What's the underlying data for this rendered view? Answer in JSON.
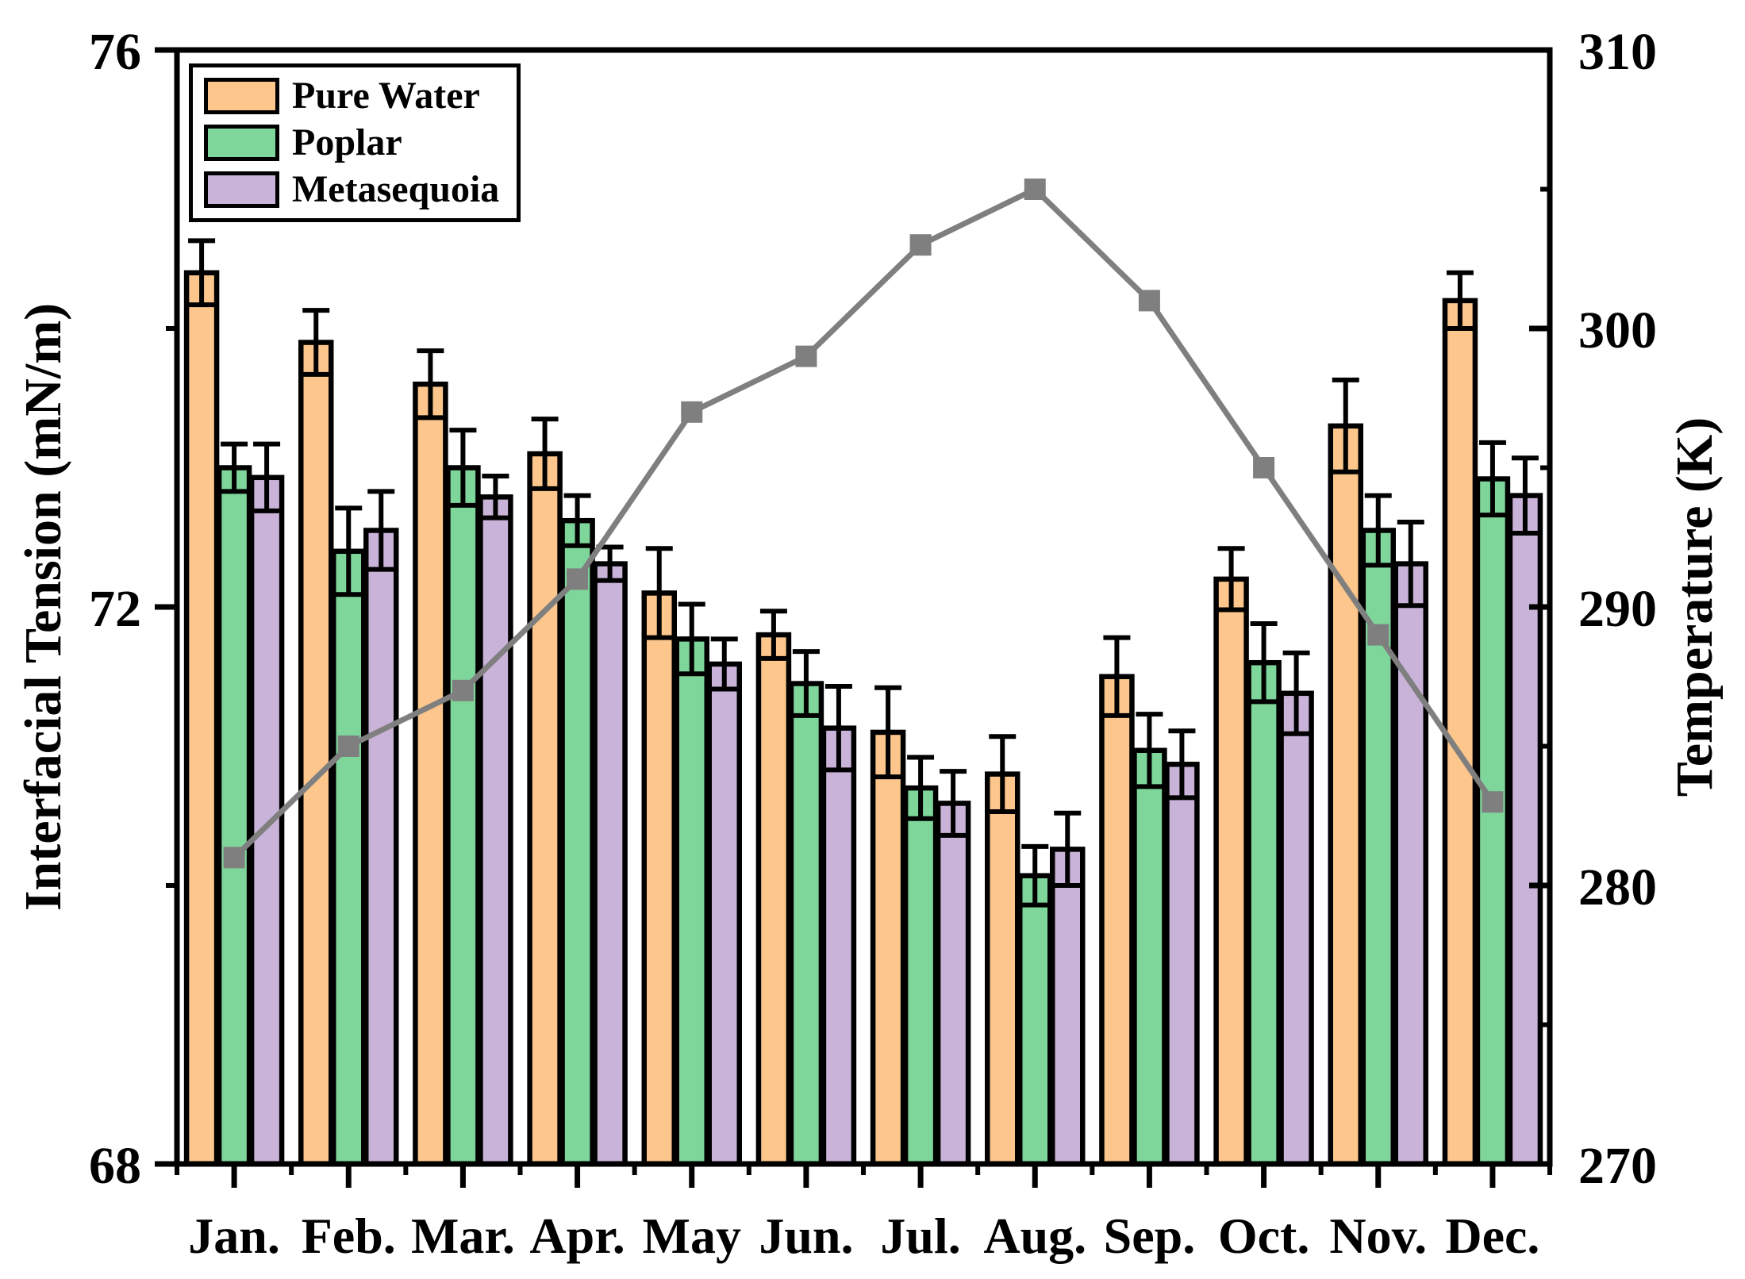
{
  "chart_data": {
    "type": "bar",
    "title": "",
    "categories": [
      "Jan.",
      "Feb.",
      "Mar.",
      "Apr.",
      "May",
      "Jun.",
      "Jul.",
      "Aug.",
      "Sep.",
      "Oct.",
      "Nov.",
      "Dec."
    ],
    "ylabel_left": "Interfacial Tension (mN/m)",
    "ylabel_right": "Temperature (K)",
    "left_axis": {
      "min": 68,
      "max": 76,
      "major_ticks": [
        68,
        72,
        76
      ],
      "minor_ticks": [
        70,
        74
      ]
    },
    "right_axis": {
      "min": 270,
      "max": 310,
      "major_ticks": [
        270,
        280,
        290,
        300,
        310
      ],
      "minor_ticks": [
        275,
        285,
        295,
        305
      ]
    },
    "series": [
      {
        "name": "Pure Water",
        "color": "#FCC68C",
        "values": [
          74.4,
          73.9,
          73.6,
          73.1,
          72.1,
          71.8,
          71.1,
          70.8,
          71.5,
          72.2,
          73.3,
          74.2
        ],
        "errors": [
          0.23,
          0.23,
          0.24,
          0.25,
          0.32,
          0.17,
          0.32,
          0.27,
          0.28,
          0.22,
          0.33,
          0.2
        ]
      },
      {
        "name": "Poplar",
        "color": "#7FD69B",
        "values": [
          73.0,
          72.4,
          73.0,
          72.62,
          71.77,
          71.45,
          70.7,
          70.07,
          70.97,
          71.6,
          72.55,
          72.92
        ],
        "errors": [
          0.17,
          0.31,
          0.27,
          0.18,
          0.25,
          0.23,
          0.22,
          0.21,
          0.26,
          0.28,
          0.25,
          0.26
        ]
      },
      {
        "name": "Metasequoia",
        "color": "#C9B3D8",
        "values": [
          72.93,
          72.55,
          72.79,
          72.31,
          71.59,
          71.13,
          70.59,
          70.26,
          70.87,
          71.38,
          72.31,
          72.8
        ],
        "errors": [
          0.24,
          0.28,
          0.15,
          0.12,
          0.18,
          0.3,
          0.23,
          0.26,
          0.24,
          0.29,
          0.3,
          0.27
        ]
      }
    ],
    "line_series": {
      "name": "Temperature",
      "color": "#7F7F7F",
      "values": [
        281,
        285,
        287,
        291,
        297,
        299,
        303,
        305,
        301,
        295,
        289,
        283
      ]
    },
    "legend_position": "top-left",
    "grid": false,
    "frame_color": "#000000",
    "background": "#FFFFFF"
  }
}
